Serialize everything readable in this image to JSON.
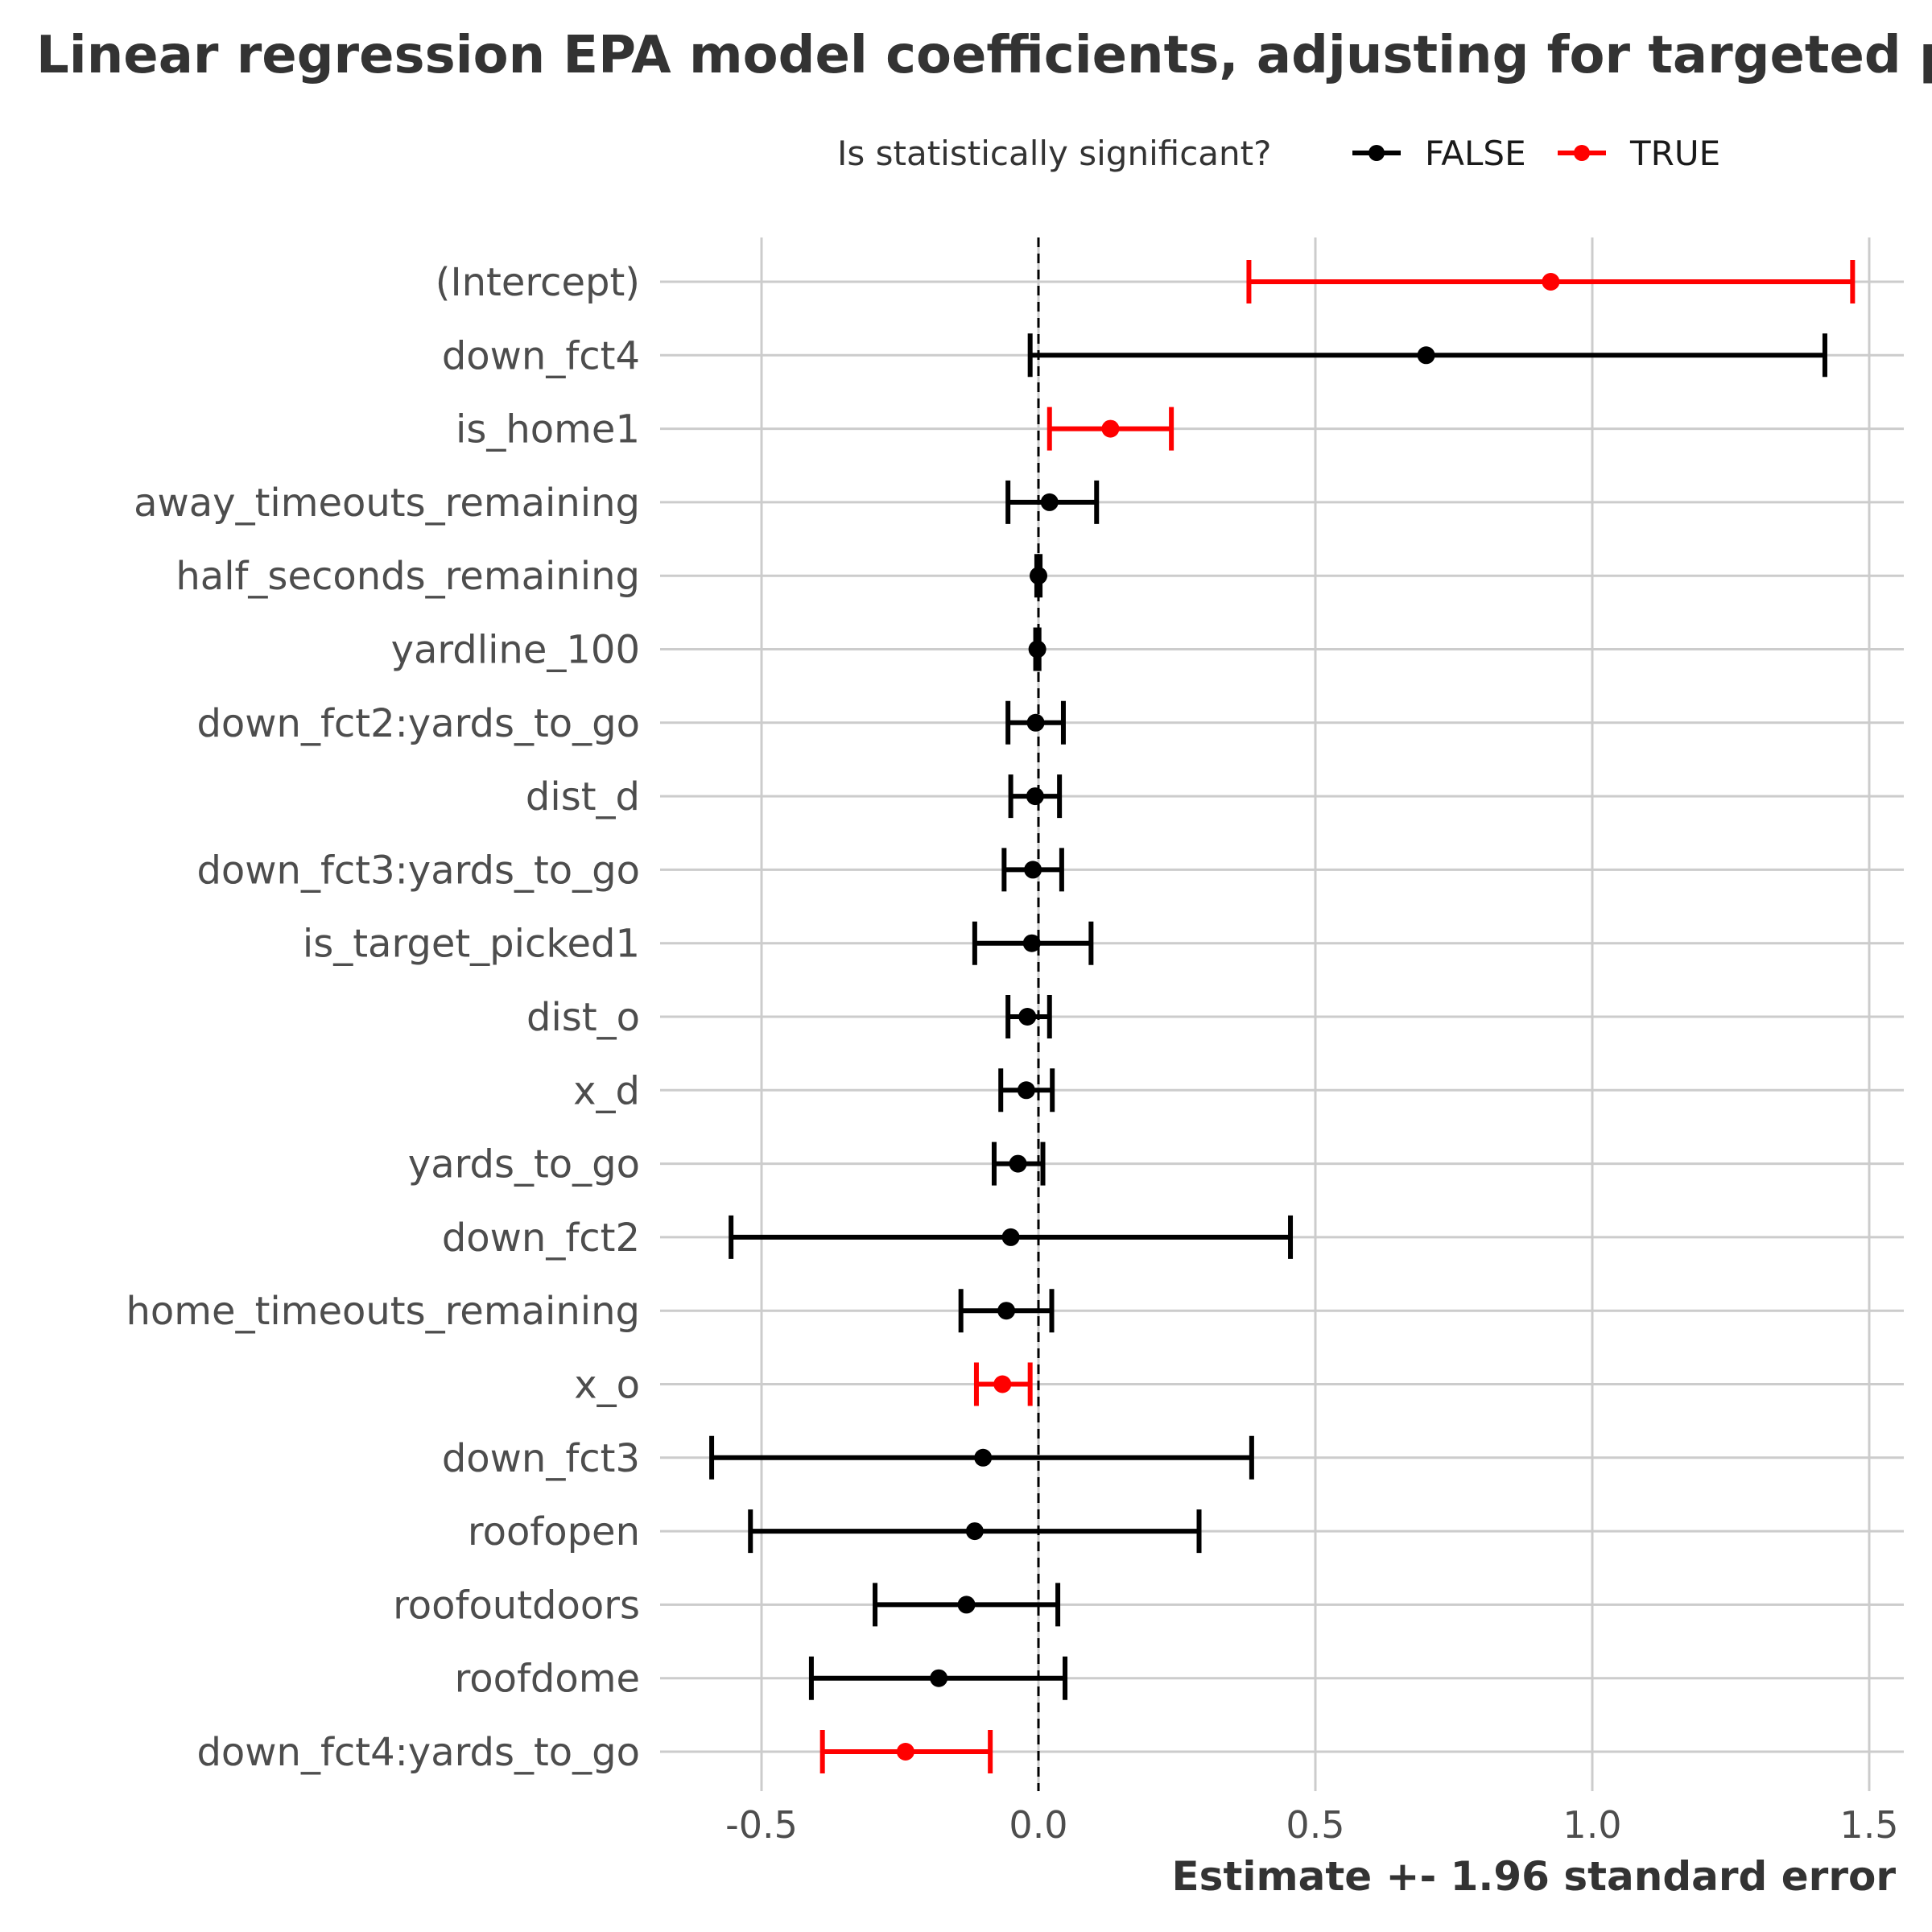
{
  "chart_data": {
    "type": "errorbar",
    "title": "Linear regression EPA model coefficients, adjusting for targeted p",
    "xlabel": "Estimate +- 1.96 standard error",
    "ylabel": "",
    "xlim": [
      -0.65,
      1.55
    ],
    "x_ticks": [
      -0.5,
      0.0,
      0.5,
      1.0,
      1.5
    ],
    "x_tick_labels": [
      "-0.5",
      "0.0",
      "0.5",
      "1.0",
      "1.5"
    ],
    "reference_line": 0,
    "grid": true,
    "legend": {
      "title": "Is statistically significant?",
      "position": "top",
      "entries": [
        {
          "label": "FALSE",
          "color": "#000000"
        },
        {
          "label": "TRUE",
          "color": "#ff0000"
        }
      ]
    },
    "colors": {
      "FALSE": "#000000",
      "TRUE": "#ff0000"
    },
    "terms": [
      {
        "term": "(Intercept)",
        "estimate": 0.925,
        "low": 0.38,
        "high": 1.47,
        "significant": true
      },
      {
        "term": "down_fct4",
        "estimate": 0.7,
        "low": -0.015,
        "high": 1.42,
        "significant": false
      },
      {
        "term": "is_home1",
        "estimate": 0.13,
        "low": 0.02,
        "high": 0.24,
        "significant": true
      },
      {
        "term": "away_timeouts_remaining",
        "estimate": 0.02,
        "low": -0.055,
        "high": 0.105,
        "significant": false
      },
      {
        "term": "half_seconds_remaining",
        "estimate": 0.0,
        "low": -0.003,
        "high": 0.003,
        "significant": false
      },
      {
        "term": "yardline_100",
        "estimate": -0.002,
        "low": -0.005,
        "high": 0.001,
        "significant": false
      },
      {
        "term": "down_fct2:yards_to_go",
        "estimate": -0.005,
        "low": -0.055,
        "high": 0.045,
        "significant": false
      },
      {
        "term": "dist_d",
        "estimate": -0.006,
        "low": -0.05,
        "high": 0.038,
        "significant": false
      },
      {
        "term": "down_fct3:yards_to_go",
        "estimate": -0.01,
        "low": -0.062,
        "high": 0.042,
        "significant": false
      },
      {
        "term": "is_target_picked1",
        "estimate": -0.012,
        "low": -0.115,
        "high": 0.095,
        "significant": false
      },
      {
        "term": "dist_o",
        "estimate": -0.02,
        "low": -0.055,
        "high": 0.02,
        "significant": false
      },
      {
        "term": "x_d",
        "estimate": -0.022,
        "low": -0.068,
        "high": 0.025,
        "significant": false
      },
      {
        "term": "yards_to_go",
        "estimate": -0.037,
        "low": -0.08,
        "high": 0.008,
        "significant": false
      },
      {
        "term": "down_fct2",
        "estimate": -0.05,
        "low": -0.555,
        "high": 0.455,
        "significant": false
      },
      {
        "term": "home_timeouts_remaining",
        "estimate": -0.058,
        "low": -0.14,
        "high": 0.024,
        "significant": false
      },
      {
        "term": "x_o",
        "estimate": -0.065,
        "low": -0.112,
        "high": -0.015,
        "significant": true
      },
      {
        "term": "down_fct3",
        "estimate": -0.1,
        "low": -0.59,
        "high": 0.385,
        "significant": false
      },
      {
        "term": "roofopen",
        "estimate": -0.115,
        "low": -0.52,
        "high": 0.29,
        "significant": false
      },
      {
        "term": "roofoutdoors",
        "estimate": -0.13,
        "low": -0.295,
        "high": 0.035,
        "significant": false
      },
      {
        "term": "roofdome",
        "estimate": -0.18,
        "low": -0.41,
        "high": 0.048,
        "significant": false
      },
      {
        "term": "down_fct4:yards_to_go",
        "estimate": -0.24,
        "low": -0.39,
        "high": -0.087,
        "significant": true
      }
    ]
  }
}
